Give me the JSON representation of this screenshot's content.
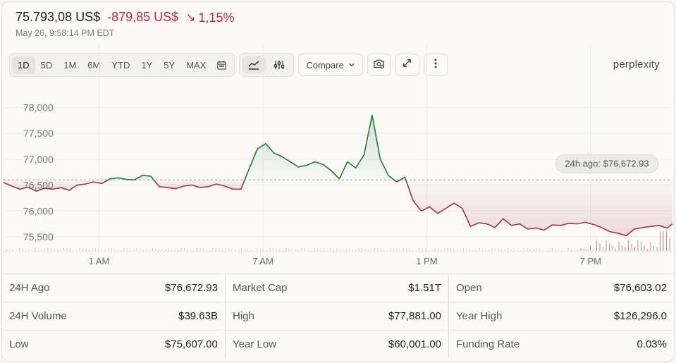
{
  "header": {
    "price": "75.793,08 US$",
    "change": "-879,85 US$",
    "change_pct": "1,15%",
    "timestamp": "May 26, 9:58:14 PM EDT"
  },
  "toolbar": {
    "ranges": [
      "1D",
      "5D",
      "1M",
      "6M",
      "YTD",
      "1Y",
      "5Y",
      "MAX"
    ],
    "active_range": "1D",
    "compare_label": "Compare",
    "icons": [
      "calendar-icon",
      "line-chart-icon",
      "sliders-icon",
      "chevron-down-icon",
      "camera-icon",
      "expand-icon",
      "more-icon"
    ]
  },
  "brand": "perplexity",
  "colors": {
    "up": "#1f7a35",
    "down": "#a23246",
    "accent_red": "#b8274a"
  },
  "chart_data": {
    "type": "line",
    "reference_value": 76600,
    "reference_label": "24h ago: $76,672.93",
    "ylim": [
      75200,
      78400
    ],
    "yticks": [
      {
        "value": 78000,
        "label": "78,000"
      },
      {
        "value": 77500,
        "label": "77,500"
      },
      {
        "value": 77000,
        "label": "77,000"
      },
      {
        "value": 76500,
        "label": "76,500"
      },
      {
        "value": 76000,
        "label": "76,000"
      },
      {
        "value": 75500,
        "label": "75,500"
      }
    ],
    "xticks": [
      {
        "hour": 1,
        "label": "1 AM"
      },
      {
        "hour": 7,
        "label": "7 AM"
      },
      {
        "hour": 13,
        "label": "1 PM"
      },
      {
        "hour": 19,
        "label": "7 PM"
      }
    ],
    "xlim": [
      -2.5,
      22
    ],
    "series": [
      {
        "x": [
          -2.5,
          -2.2,
          -1.9,
          -1.6,
          -1.3,
          -1.0,
          -0.7,
          -0.4,
          -0.1,
          0.2,
          0.5,
          0.8,
          1.1,
          1.4,
          1.7,
          2.0,
          2.3,
          2.6,
          2.9,
          3.2,
          3.5,
          3.8,
          4.1,
          4.4,
          4.7,
          5.0,
          5.3,
          5.6,
          5.9,
          6.2,
          6.5,
          6.8,
          7.1,
          7.4,
          7.7,
          8.0,
          8.3,
          8.6,
          8.9,
          9.2,
          9.5,
          9.8,
          10.1,
          10.4,
          10.7,
          11.0,
          11.3,
          11.6,
          11.9,
          12.2,
          12.5,
          12.8,
          13.1,
          13.4,
          13.7,
          14.0,
          14.3,
          14.6,
          14.9,
          15.2,
          15.5,
          15.8,
          16.1,
          16.4,
          16.7,
          17.0,
          17.3,
          17.6,
          17.9,
          18.2,
          18.5,
          18.8,
          19.1,
          19.4,
          19.7,
          20.0,
          20.3,
          20.6,
          20.9,
          21.2,
          21.5,
          21.8,
          22.0
        ],
        "y": [
          76550,
          76480,
          76420,
          76460,
          76380,
          76440,
          76420,
          76450,
          76400,
          76500,
          76520,
          76560,
          76530,
          76620,
          76640,
          76610,
          76600,
          76690,
          76670,
          76470,
          76450,
          76430,
          76480,
          76500,
          76450,
          76470,
          76520,
          76480,
          76420,
          76420,
          76820,
          77200,
          77300,
          77120,
          77050,
          76950,
          76850,
          76880,
          76950,
          76900,
          76780,
          76620,
          76950,
          76830,
          77080,
          77850,
          77000,
          76680,
          76560,
          76650,
          76200,
          76000,
          76080,
          75950,
          76050,
          76150,
          76050,
          75700,
          75770,
          75750,
          75680,
          75850,
          75720,
          75750,
          75650,
          75670,
          75630,
          75730,
          75720,
          75760,
          75750,
          75780,
          75740,
          75680,
          75600,
          75570,
          75520,
          75650,
          75680,
          75700,
          75720,
          75670,
          75750
        ]
      }
    ],
    "volume_bars": true
  },
  "stats": [
    {
      "label": "24H Ago",
      "value": "$76,672.93"
    },
    {
      "label": "Market Cap",
      "value": "$1.51T"
    },
    {
      "label": "Open",
      "value": "$76,603.02"
    },
    {
      "label": "24H Volume",
      "value": "$39.63B"
    },
    {
      "label": "High",
      "value": "$77,881.00"
    },
    {
      "label": "Year High",
      "value": "$126,296.0"
    },
    {
      "label": "Low",
      "value": "$75,607.00"
    },
    {
      "label": "Year Low",
      "value": "$60,001.00"
    },
    {
      "label": "Funding Rate",
      "value": "0.03%"
    }
  ]
}
